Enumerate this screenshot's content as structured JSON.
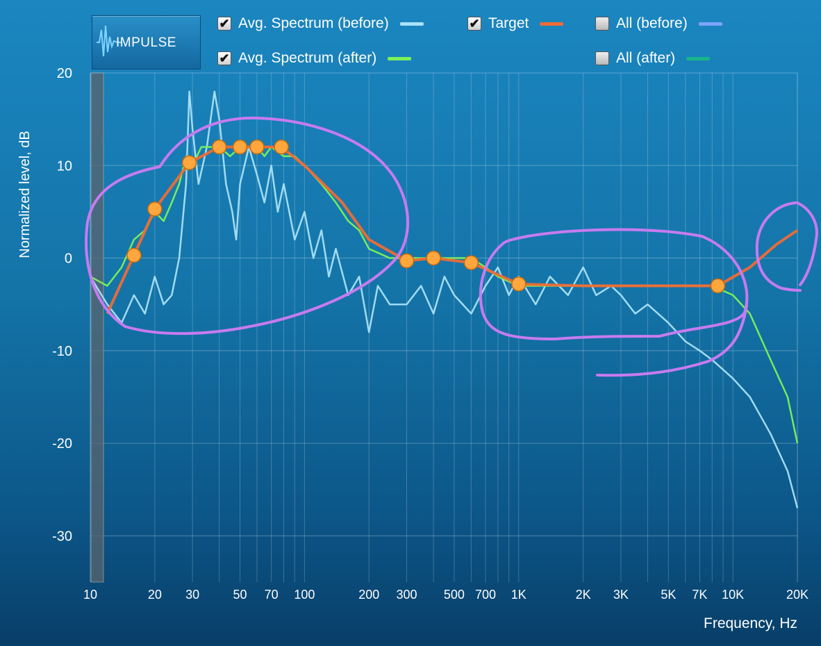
{
  "toolbar": {
    "logo_label": "IMPULSE",
    "legend": [
      {
        "label": "Avg. Spectrum (before)",
        "checked": true,
        "color": "#a9e1f7"
      },
      {
        "label": "Target",
        "checked": true,
        "color": "#ef6b35"
      },
      {
        "label": "All (before)",
        "checked": false,
        "color": "#7ea3ff"
      },
      {
        "label": "Avg. Spectrum (after)",
        "checked": true,
        "color": "#7cf25a"
      },
      {
        "label": "All (after)",
        "checked": false,
        "color": "#18b58a"
      }
    ]
  },
  "chart_data": {
    "type": "line",
    "xscale": "log",
    "xlim": [
      10,
      20000
    ],
    "ylim": [
      -35,
      20
    ],
    "xlabel": "Frequency, Hz",
    "ylabel": "Normalized level, dB",
    "x_ticks": [
      10,
      20,
      30,
      50,
      70,
      100,
      200,
      300,
      500,
      700,
      1000,
      2000,
      3000,
      5000,
      7000,
      10000,
      20000
    ],
    "x_tick_labels": [
      "10",
      "20",
      "30",
      "50",
      "70",
      "100",
      "200",
      "300",
      "500",
      "700",
      "1K",
      "2K",
      "3K",
      "5K",
      "7K",
      "10K",
      "20K"
    ],
    "y_ticks": [
      20,
      10,
      0,
      -10,
      -20,
      -30
    ],
    "y_tick_labels": [
      "20",
      "10",
      "0",
      "-10",
      "-20",
      "-30"
    ],
    "series": [
      {
        "name": "Avg. Spectrum (before)",
        "color": "#a9e1f7",
        "points": [
          [
            10,
            -2
          ],
          [
            12,
            -5
          ],
          [
            14,
            -7
          ],
          [
            16,
            -4
          ],
          [
            18,
            -6
          ],
          [
            20,
            -2
          ],
          [
            22,
            -5
          ],
          [
            24,
            -4
          ],
          [
            26,
            0
          ],
          [
            28,
            8
          ],
          [
            29,
            18
          ],
          [
            30,
            14
          ],
          [
            32,
            8
          ],
          [
            35,
            12
          ],
          [
            38,
            18
          ],
          [
            40,
            15
          ],
          [
            43,
            8
          ],
          [
            46,
            5
          ],
          [
            48,
            2
          ],
          [
            50,
            8
          ],
          [
            55,
            12
          ],
          [
            60,
            9
          ],
          [
            65,
            6
          ],
          [
            70,
            10
          ],
          [
            75,
            5
          ],
          [
            80,
            8
          ],
          [
            90,
            2
          ],
          [
            100,
            5
          ],
          [
            110,
            0
          ],
          [
            120,
            3
          ],
          [
            130,
            -2
          ],
          [
            140,
            1
          ],
          [
            160,
            -4
          ],
          [
            180,
            -2
          ],
          [
            200,
            -8
          ],
          [
            220,
            -3
          ],
          [
            250,
            -5
          ],
          [
            300,
            -5
          ],
          [
            350,
            -3
          ],
          [
            400,
            -6
          ],
          [
            450,
            -2
          ],
          [
            500,
            -4
          ],
          [
            600,
            -6
          ],
          [
            700,
            -3
          ],
          [
            800,
            -1
          ],
          [
            900,
            -4
          ],
          [
            1000,
            -2
          ],
          [
            1200,
            -5
          ],
          [
            1400,
            -2
          ],
          [
            1700,
            -4
          ],
          [
            2000,
            -1
          ],
          [
            2300,
            -4
          ],
          [
            2700,
            -3
          ],
          [
            3000,
            -4
          ],
          [
            3500,
            -6
          ],
          [
            4000,
            -5
          ],
          [
            5000,
            -7
          ],
          [
            6000,
            -9
          ],
          [
            7000,
            -10
          ],
          [
            8000,
            -11
          ],
          [
            10000,
            -13
          ],
          [
            12000,
            -15
          ],
          [
            15000,
            -19
          ],
          [
            18000,
            -23
          ],
          [
            20000,
            -27
          ]
        ]
      },
      {
        "name": "Avg. Spectrum (after)",
        "color": "#7cf25a",
        "points": [
          [
            10,
            -2
          ],
          [
            12,
            -3
          ],
          [
            14,
            -1
          ],
          [
            16,
            2
          ],
          [
            18,
            3
          ],
          [
            20,
            5
          ],
          [
            22,
            4
          ],
          [
            24,
            6
          ],
          [
            26,
            8
          ],
          [
            28,
            11
          ],
          [
            30,
            10
          ],
          [
            33,
            12
          ],
          [
            36,
            12
          ],
          [
            40,
            12
          ],
          [
            45,
            11
          ],
          [
            50,
            12
          ],
          [
            55,
            12
          ],
          [
            60,
            12
          ],
          [
            65,
            11
          ],
          [
            70,
            12
          ],
          [
            80,
            11
          ],
          [
            90,
            11
          ],
          [
            100,
            10
          ],
          [
            120,
            8
          ],
          [
            140,
            6
          ],
          [
            160,
            4
          ],
          [
            180,
            3
          ],
          [
            200,
            1
          ],
          [
            250,
            0
          ],
          [
            300,
            0
          ],
          [
            400,
            0
          ],
          [
            500,
            0
          ],
          [
            600,
            0
          ],
          [
            700,
            -1
          ],
          [
            800,
            -2
          ],
          [
            1000,
            -3
          ],
          [
            1500,
            -3
          ],
          [
            2000,
            -3
          ],
          [
            3000,
            -3
          ],
          [
            5000,
            -3
          ],
          [
            8000,
            -3
          ],
          [
            10000,
            -4
          ],
          [
            12000,
            -6
          ],
          [
            15000,
            -11
          ],
          [
            18000,
            -15
          ],
          [
            20000,
            -20
          ]
        ]
      },
      {
        "name": "Target",
        "color": "#ef6b35",
        "points": [
          [
            12,
            -6
          ],
          [
            16,
            0.3
          ],
          [
            20,
            5.3
          ],
          [
            29,
            10.3
          ],
          [
            40,
            12
          ],
          [
            50,
            12
          ],
          [
            60,
            12
          ],
          [
            78,
            12
          ],
          [
            100,
            10
          ],
          [
            150,
            6
          ],
          [
            200,
            2
          ],
          [
            300,
            -0.3
          ],
          [
            400,
            0
          ],
          [
            600,
            -0.5
          ],
          [
            1000,
            -2.8
          ],
          [
            2000,
            -3
          ],
          [
            4000,
            -3
          ],
          [
            8500,
            -3
          ],
          [
            12000,
            -1
          ],
          [
            16000,
            1.5
          ],
          [
            20000,
            3
          ]
        ]
      }
    ],
    "markers": [
      [
        16,
        0.3
      ],
      [
        20,
        5.3
      ],
      [
        29,
        10.3
      ],
      [
        40,
        12
      ],
      [
        50,
        12
      ],
      [
        60,
        12
      ],
      [
        78,
        12
      ],
      [
        300,
        -0.3
      ],
      [
        400,
        0
      ],
      [
        600,
        -0.5
      ],
      [
        1000,
        -2.8
      ],
      [
        8500,
        -3
      ]
    ]
  }
}
